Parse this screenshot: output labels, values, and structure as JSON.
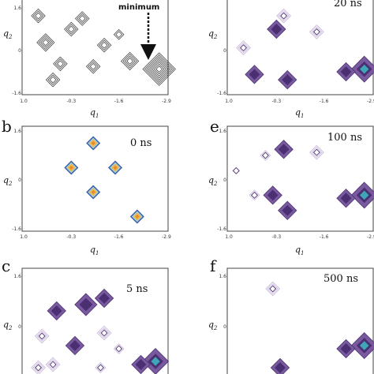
{
  "chart_data": [
    {
      "panel": "a",
      "type": "contour",
      "annotation": "minimum",
      "xlabel": "q1",
      "ylabel": "q2",
      "xticks": [
        "1.0",
        "-0.3",
        "-1.6",
        "-2.9"
      ],
      "yticks": [
        "1.6",
        "0",
        "-1.6"
      ],
      "xlim": [
        1.0,
        -2.9
      ],
      "ylim": [
        -1.6,
        1.6
      ],
      "clusters": [
        {
          "x": -2.7,
          "y": -0.7,
          "levels": 8
        },
        {
          "x": -1.9,
          "y": -0.4,
          "levels": 4
        },
        {
          "x": -1.2,
          "y": 0.2,
          "levels": 3
        },
        {
          "x": -0.9,
          "y": -0.6,
          "levels": 3
        },
        {
          "x": -0.3,
          "y": 0.8,
          "levels": 3
        },
        {
          "x": 0.4,
          "y": 0.3,
          "levels": 4
        },
        {
          "x": 0.0,
          "y": -0.5,
          "levels": 3
        },
        {
          "x": -0.6,
          "y": 1.2,
          "levels": 3
        },
        {
          "x": 0.6,
          "y": 1.3,
          "levels": 3
        },
        {
          "x": -1.6,
          "y": 0.6,
          "levels": 2
        },
        {
          "x": 0.2,
          "y": -1.1,
          "levels": 3
        }
      ]
    },
    {
      "panel": "b",
      "type": "contour",
      "time": "0 ns",
      "xlabel": "q1",
      "ylabel": "q2",
      "xticks": [
        "1.0",
        "-0.3",
        "-1.6",
        "-2.9"
      ],
      "yticks": [
        "1.6",
        "0",
        "-1.6"
      ],
      "xlim": [
        1.0,
        -2.9
      ],
      "ylim": [
        -1.6,
        1.6
      ],
      "clusters": [
        {
          "x": -0.9,
          "y": 1.2,
          "levels": 5
        },
        {
          "x": -0.3,
          "y": 0.4,
          "levels": 5
        },
        {
          "x": -1.5,
          "y": 0.4,
          "levels": 5
        },
        {
          "x": -0.9,
          "y": -0.4,
          "levels": 5
        },
        {
          "x": -2.1,
          "y": -1.2,
          "levels": 5
        }
      ]
    },
    {
      "panel": "c",
      "type": "contour",
      "time": "5 ns",
      "xlabel": "q1",
      "ylabel": "q2",
      "xticks": [],
      "yticks": [
        "1.6",
        "0"
      ],
      "xlim": [
        1.0,
        -2.9
      ],
      "ylim": [
        -1.6,
        1.6
      ],
      "clusters": [
        {
          "x": -2.6,
          "y": -1.1,
          "levels": 6
        },
        {
          "x": -2.2,
          "y": -1.2,
          "levels": 4
        },
        {
          "x": -1.2,
          "y": 0.9,
          "levels": 4
        },
        {
          "x": -0.7,
          "y": 0.7,
          "levels": 5
        },
        {
          "x": 0.1,
          "y": 0.5,
          "levels": 4
        },
        {
          "x": -1.2,
          "y": -0.2,
          "levels": 3
        },
        {
          "x": 0.5,
          "y": -0.3,
          "levels": 3
        },
        {
          "x": -0.4,
          "y": -0.6,
          "levels": 4
        },
        {
          "x": -1.6,
          "y": -0.7,
          "levels": 2
        },
        {
          "x": 0.2,
          "y": -1.2,
          "levels": 3
        },
        {
          "x": 0.6,
          "y": -1.3,
          "levels": 3
        },
        {
          "x": -1.1,
          "y": -1.3,
          "levels": 2
        }
      ]
    },
    {
      "panel": "d",
      "type": "contour",
      "time": "20 ns",
      "xlabel": "q1",
      "ylabel": "q2",
      "xticks": [
        "1.0",
        "-0.3",
        "-1.6",
        "-2.9"
      ],
      "yticks": [
        "0",
        "-1.6"
      ],
      "xlim": [
        1.0,
        -2.9
      ],
      "ylim": [
        -1.6,
        1.6
      ],
      "clusters": [
        {
          "x": -2.7,
          "y": -0.7,
          "levels": 6
        },
        {
          "x": -2.2,
          "y": -0.8,
          "levels": 4
        },
        {
          "x": -0.3,
          "y": 0.8,
          "levels": 4
        },
        {
          "x": -1.4,
          "y": 0.7,
          "levels": 3
        },
        {
          "x": 0.6,
          "y": 0.1,
          "levels": 3
        },
        {
          "x": 0.3,
          "y": -0.9,
          "levels": 4
        },
        {
          "x": -0.6,
          "y": -1.1,
          "levels": 4
        },
        {
          "x": -0.5,
          "y": 1.3,
          "levels": 3
        }
      ]
    },
    {
      "panel": "e",
      "type": "contour",
      "time": "100 ns",
      "xlabel": "q1",
      "ylabel": "q2",
      "xticks": [
        "1.0",
        "-0.3",
        "-1.6",
        "-2.9"
      ],
      "yticks": [
        "1.6",
        "0",
        "-1.6"
      ],
      "xlim": [
        1.0,
        -2.9
      ],
      "ylim": [
        -1.6,
        1.6
      ],
      "clusters": [
        {
          "x": -2.7,
          "y": -0.5,
          "levels": 6
        },
        {
          "x": -2.2,
          "y": -0.6,
          "levels": 4
        },
        {
          "x": -0.5,
          "y": 1.0,
          "levels": 4
        },
        {
          "x": -1.4,
          "y": 0.9,
          "levels": 3
        },
        {
          "x": 0.0,
          "y": 0.8,
          "levels": 2
        },
        {
          "x": 0.8,
          "y": 0.3,
          "levels": 1
        },
        {
          "x": 0.3,
          "y": -0.5,
          "levels": 2
        },
        {
          "x": -0.2,
          "y": -0.5,
          "levels": 4
        },
        {
          "x": -0.6,
          "y": -1.0,
          "levels": 4
        }
      ]
    },
    {
      "panel": "f",
      "type": "contour",
      "time": "500 ns",
      "xlabel": "q1",
      "ylabel": "q2",
      "xticks": [],
      "yticks": [
        "1.6",
        "0"
      ],
      "xlim": [
        1.0,
        -2.9
      ],
      "ylim": [
        -1.6,
        1.6
      ],
      "clusters": [
        {
          "x": -2.7,
          "y": -0.6,
          "levels": 6
        },
        {
          "x": -2.2,
          "y": -0.7,
          "levels": 4
        },
        {
          "x": -0.2,
          "y": 1.2,
          "levels": 3
        },
        {
          "x": -0.4,
          "y": -1.3,
          "levels": 4
        }
      ]
    }
  ],
  "palette": {
    "outer": "#cbb8dc",
    "mid": "#7a5a9e",
    "inner": "#4a2f72",
    "core": "#3fa6b8",
    "hot": "#f1b64a",
    "ring": "#3a5ca8",
    "contour": "#333333",
    "axis": "#444444"
  }
}
